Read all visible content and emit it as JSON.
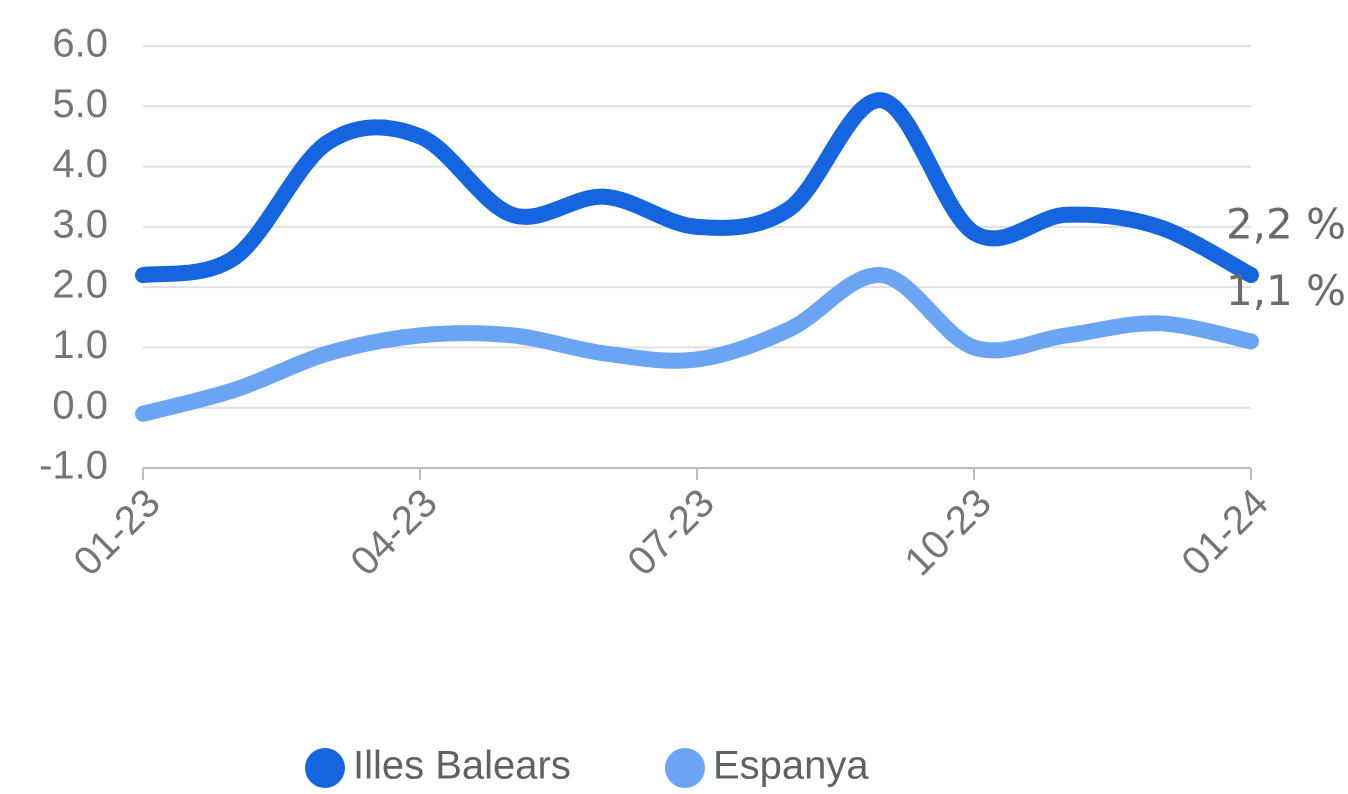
{
  "chart_data": {
    "type": "line",
    "categories": [
      "01-23",
      null,
      null,
      "04-23",
      null,
      null,
      "07-23",
      null,
      null,
      "10-23",
      null,
      null,
      "01-24"
    ],
    "series": [
      {
        "name": "Illes Balears",
        "color": "#1565e0",
        "values": [
          2.2,
          2.5,
          4.4,
          4.5,
          3.2,
          3.5,
          3.0,
          3.3,
          5.1,
          2.9,
          3.2,
          3.0,
          2.2
        ],
        "value_labels": [
          null,
          null,
          null,
          null,
          null,
          null,
          null,
          null,
          null,
          null,
          null,
          null,
          "2,2 %"
        ]
      },
      {
        "name": "Espanya",
        "color": "#6ca4f4",
        "values": [
          -0.1,
          0.3,
          0.9,
          1.2,
          1.2,
          0.9,
          0.8,
          1.3,
          2.2,
          1.0,
          1.2,
          1.4,
          1.1
        ],
        "value_labels": [
          null,
          null,
          null,
          null,
          null,
          null,
          null,
          null,
          null,
          null,
          null,
          null,
          "1,1 %"
        ]
      }
    ],
    "ylim": [
      -1,
      6
    ],
    "yticks": [
      {
        "value": -1,
        "label": "-1.0"
      },
      {
        "value": 0,
        "label": "0.0"
      },
      {
        "value": 1,
        "label": "1.0"
      },
      {
        "value": 2,
        "label": "2.0"
      },
      {
        "value": 3,
        "label": "3.0"
      },
      {
        "value": 4,
        "label": "4.0"
      },
      {
        "value": 5,
        "label": "5.0"
      },
      {
        "value": 6,
        "label": "6.0"
      }
    ],
    "grid": true,
    "legend": "bottom"
  }
}
